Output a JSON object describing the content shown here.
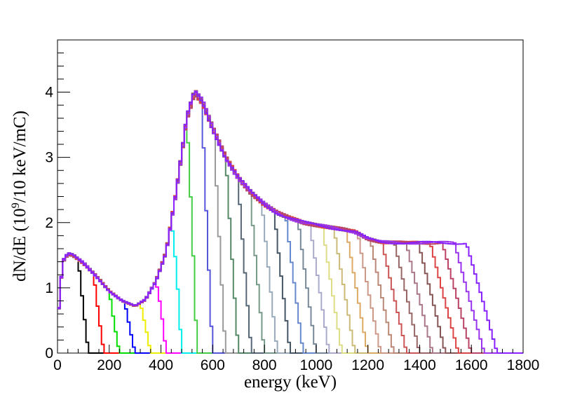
{
  "chart_data": {
    "type": "line",
    "title": "",
    "xlabel": "energy (keV)",
    "ylabel": "dN/dE (10^9/10 keV/mC)",
    "xlim": [
      0,
      1800
    ],
    "ylim": [
      0,
      4.8
    ],
    "x_ticks": [
      0,
      200,
      400,
      600,
      800,
      1000,
      1200,
      1400,
      1600,
      1800
    ],
    "y_ticks": [
      0,
      1,
      2,
      3,
      4
    ],
    "grid": false,
    "legend": "none",
    "bin_width_keV": 10,
    "series": [
      {
        "end": 120,
        "color": "#000000"
      },
      {
        "end": 180,
        "color": "#ff0000"
      },
      {
        "end": 240,
        "color": "#00dd00"
      },
      {
        "end": 300,
        "color": "#0000ff"
      },
      {
        "end": 360,
        "color": "#eeee00"
      },
      {
        "end": 420,
        "color": "#ff00ff"
      },
      {
        "end": 480,
        "color": "#00eeee"
      },
      {
        "end": 540,
        "color": "#44cc44"
      },
      {
        "end": 600,
        "color": "#5555dd"
      },
      {
        "end": 650,
        "color": "#999999"
      },
      {
        "end": 700,
        "color": "#558866"
      },
      {
        "end": 750,
        "color": "#556677"
      },
      {
        "end": 800,
        "color": "#779988"
      },
      {
        "end": 850,
        "color": "#99aabb"
      },
      {
        "end": 900,
        "color": "#445566"
      },
      {
        "end": 950,
        "color": "#6688cc"
      },
      {
        "end": 1000,
        "color": "#778899"
      },
      {
        "end": 1050,
        "color": "#aaaacc"
      },
      {
        "end": 1100,
        "color": "#dddd88"
      },
      {
        "end": 1150,
        "color": "#ccbb77"
      },
      {
        "end": 1200,
        "color": "#ddaa66"
      },
      {
        "end": 1250,
        "color": "#cc9988"
      },
      {
        "end": 1300,
        "color": "#bb8877"
      },
      {
        "end": 1350,
        "color": "#cc5555"
      },
      {
        "end": 1400,
        "color": "#996666"
      },
      {
        "end": 1450,
        "color": "#aa7788"
      },
      {
        "end": 1500,
        "color": "#885555"
      },
      {
        "end": 1550,
        "color": "#dd4444"
      },
      {
        "end": 1600,
        "color": "#bb4466"
      },
      {
        "end": 1650,
        "color": "#9933ee"
      },
      {
        "end": 1700,
        "color": "#8822ff"
      }
    ],
    "envelope_points": [
      [
        0,
        0.45
      ],
      [
        20,
        1.4
      ],
      [
        40,
        1.52
      ],
      [
        60,
        1.5
      ],
      [
        100,
        1.38
      ],
      [
        150,
        1.18
      ],
      [
        200,
        0.95
      ],
      [
        250,
        0.8
      ],
      [
        300,
        0.72
      ],
      [
        340,
        0.82
      ],
      [
        380,
        1.1
      ],
      [
        420,
        1.55
      ],
      [
        460,
        2.5
      ],
      [
        500,
        3.6
      ],
      [
        530,
        4.0
      ],
      [
        560,
        3.85
      ],
      [
        600,
        3.45
      ],
      [
        650,
        3.0
      ],
      [
        700,
        2.68
      ],
      [
        750,
        2.45
      ],
      [
        800,
        2.28
      ],
      [
        850,
        2.15
      ],
      [
        900,
        2.07
      ],
      [
        950,
        2.0
      ],
      [
        1000,
        1.96
      ],
      [
        1050,
        1.93
      ],
      [
        1100,
        1.9
      ],
      [
        1150,
        1.86
      ],
      [
        1200,
        1.75
      ],
      [
        1250,
        1.7
      ],
      [
        1400,
        1.69
      ],
      [
        1600,
        1.69
      ],
      [
        1700,
        1.69
      ]
    ]
  }
}
